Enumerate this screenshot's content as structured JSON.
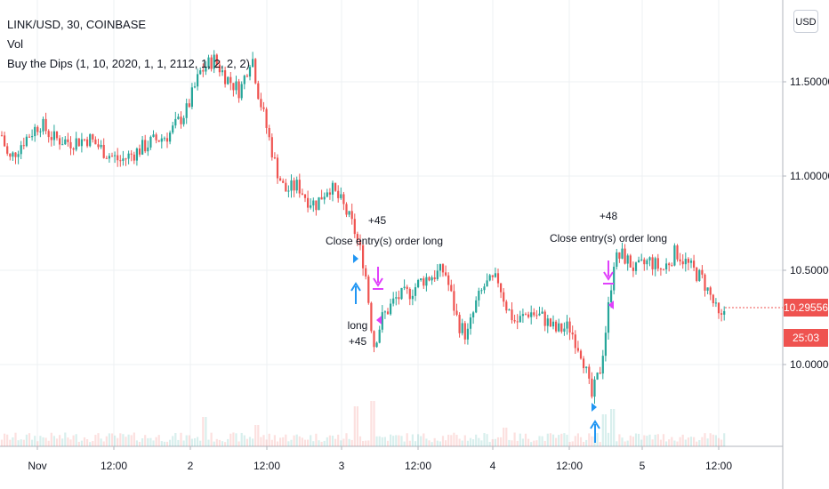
{
  "legend": {
    "symbol": "LINK/USD, 30, COINBASE",
    "vol": "Vol",
    "strategy": "Buy the Dips (1, 10, 2020, 1, 1, 2112, 1, 2, 2, 2)"
  },
  "currency_button": "USD",
  "price_tag": {
    "value": "10.29556",
    "countdown": "25:03",
    "color": "#ef5350"
  },
  "colors": {
    "up": "#26a69a",
    "down": "#ef5350",
    "entry": "#2196f3",
    "exit": "#e040fb"
  },
  "chart_data": {
    "type": "candlestick",
    "y_axis": {
      "ticks": [
        10.0,
        10.5,
        11.0,
        11.5
      ],
      "tick_labels": [
        "10.00000",
        "10.50000",
        "11.00000",
        "11.50000"
      ],
      "range": [
        9.58,
        11.9
      ]
    },
    "x_axis": {
      "tick_labels": [
        "Nov",
        "12:00",
        "2",
        "12:00",
        "3",
        "12:00",
        "4",
        "12:00",
        "5",
        "12:00"
      ]
    },
    "grid": true,
    "close_path": [
      [
        0,
        11.25
      ],
      [
        10,
        11.08
      ],
      [
        25,
        11.18
      ],
      [
        45,
        11.28
      ],
      [
        60,
        11.2
      ],
      [
        80,
        11.18
      ],
      [
        100,
        11.2
      ],
      [
        120,
        11.12
      ],
      [
        135,
        11.08
      ],
      [
        150,
        11.12
      ],
      [
        170,
        11.18
      ],
      [
        190,
        11.22
      ],
      [
        210,
        11.35
      ],
      [
        225,
        11.55
      ],
      [
        240,
        11.62
      ],
      [
        255,
        11.52
      ],
      [
        270,
        11.45
      ],
      [
        283,
        11.65
      ],
      [
        290,
        11.45
      ],
      [
        300,
        11.25
      ],
      [
        310,
        11.05
      ],
      [
        320,
        10.92
      ],
      [
        335,
        10.95
      ],
      [
        345,
        10.88
      ],
      [
        355,
        10.85
      ],
      [
        370,
        10.95
      ],
      [
        385,
        10.85
      ],
      [
        398,
        10.72
      ],
      [
        410,
        10.52
      ],
      [
        420,
        10.1
      ],
      [
        430,
        10.25
      ],
      [
        445,
        10.35
      ],
      [
        460,
        10.38
      ],
      [
        475,
        10.45
      ],
      [
        490,
        10.48
      ],
      [
        500,
        10.5
      ],
      [
        508,
        10.35
      ],
      [
        515,
        10.22
      ],
      [
        525,
        10.15
      ],
      [
        535,
        10.32
      ],
      [
        545,
        10.42
      ],
      [
        560,
        10.45
      ],
      [
        570,
        10.3
      ],
      [
        580,
        10.22
      ],
      [
        595,
        10.28
      ],
      [
        610,
        10.25
      ],
      [
        625,
        10.18
      ],
      [
        640,
        10.2
      ],
      [
        655,
        10.05
      ],
      [
        665,
        9.82
      ],
      [
        675,
        9.98
      ],
      [
        682,
        10.22
      ],
      [
        690,
        10.55
      ],
      [
        700,
        10.58
      ],
      [
        715,
        10.5
      ],
      [
        730,
        10.55
      ],
      [
        745,
        10.5
      ],
      [
        760,
        10.6
      ],
      [
        775,
        10.52
      ],
      [
        790,
        10.45
      ],
      [
        800,
        10.35
      ],
      [
        810,
        10.22
      ],
      [
        815,
        10.3
      ]
    ],
    "volume_axis_max": 1.0,
    "volume_spikes": [
      {
        "x": 230,
        "v": 0.55
      },
      {
        "x": 290,
        "v": 0.4
      },
      {
        "x": 400,
        "v": 0.75
      },
      {
        "x": 418,
        "v": 0.85
      },
      {
        "x": 568,
        "v": 0.35
      },
      {
        "x": 680,
        "v": 0.6
      },
      {
        "x": 690,
        "v": 0.7
      }
    ],
    "trades": [
      {
        "entry_label": "long",
        "entry_profit": "+45",
        "exit_label": "Close entry(s) order long",
        "exit_profit": "+45"
      },
      {
        "exit_label": "Close entry(s) order long",
        "exit_profit": "+48"
      }
    ]
  }
}
